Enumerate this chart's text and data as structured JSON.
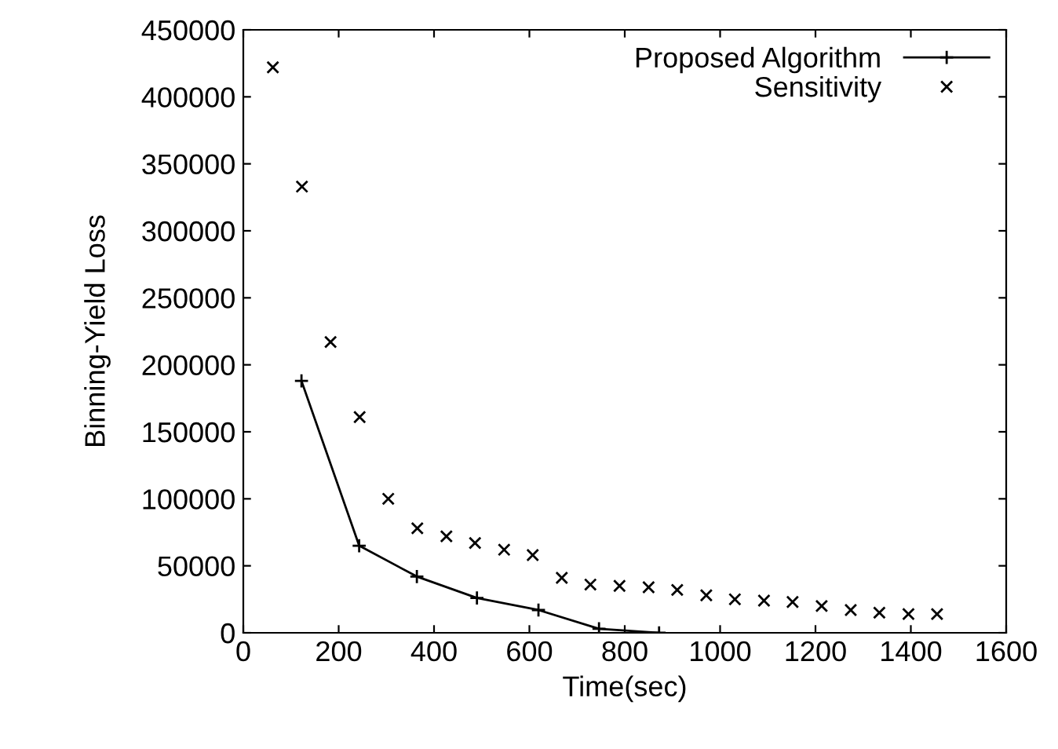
{
  "chart_data": {
    "type": "line",
    "xlabel": "Time(sec)",
    "ylabel": "Binning-Yield Loss",
    "series": [
      {
        "name": "Proposed Algorithm",
        "marker": "plus",
        "line_style": "solid",
        "color": "#000000",
        "x": [
          122,
          243,
          364,
          490,
          619,
          746,
          872
        ],
        "values": [
          188000,
          65000,
          42000,
          26000,
          17000,
          3000,
          0
        ]
      },
      {
        "name": "Sensitivity",
        "type": "scatter",
        "marker": "cross",
        "color": "#000000",
        "x": [
          62,
          123,
          183,
          244,
          304,
          365,
          426,
          486,
          547,
          607,
          668,
          728,
          789,
          850,
          910,
          971,
          1031,
          1092,
          1152,
          1213,
          1274,
          1334,
          1395,
          1455
        ],
        "values": [
          422000,
          333000,
          217000,
          161000,
          100000,
          78000,
          72000,
          67000,
          62000,
          58000,
          41000,
          36000,
          35000,
          34000,
          32000,
          28000,
          25000,
          24000,
          23000,
          20000,
          17000,
          15000,
          14000,
          14000
        ]
      }
    ],
    "xlim": [
      0,
      1600
    ],
    "xticks": [
      0,
      200,
      400,
      600,
      800,
      1000,
      1200,
      1400,
      1600
    ],
    "ylim": [
      0,
      450000
    ],
    "yticks": [
      0,
      50000,
      100000,
      150000,
      200000,
      250000,
      300000,
      350000,
      400000,
      450000
    ],
    "grid": false,
    "legend": "top right"
  }
}
